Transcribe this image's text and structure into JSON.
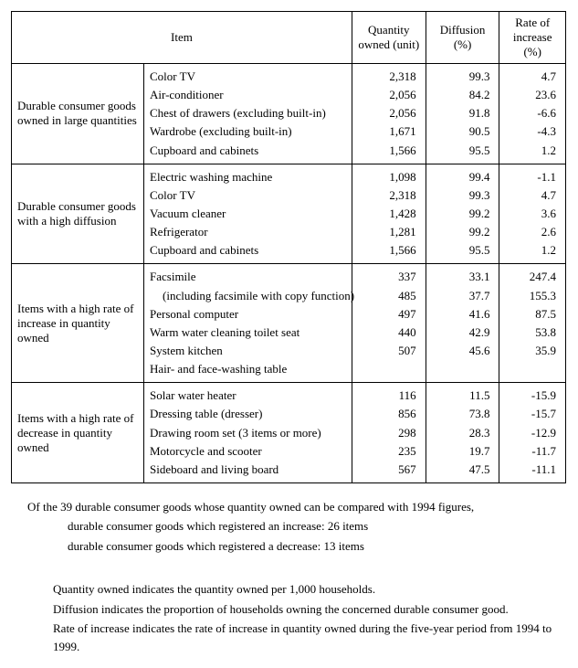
{
  "headers": {
    "item": "Item",
    "qty": "Quantity owned (unit)",
    "diff": "Diffusion (%)",
    "rate": "Rate of increase (%)"
  },
  "groups": [
    {
      "category": "Durable consumer goods owned in large quantities",
      "rows": [
        {
          "item": "Color TV",
          "qty": "2,318",
          "diff": "99.3",
          "rate": "4.7"
        },
        {
          "item": "Air-conditioner",
          "qty": "2,056",
          "diff": "84.2",
          "rate": "23.6"
        },
        {
          "item": "Chest of drawers (excluding built-in)",
          "qty": "2,056",
          "diff": "91.8",
          "rate": "-6.6"
        },
        {
          "item": "Wardrobe (excluding built-in)",
          "qty": "1,671",
          "diff": "90.5",
          "rate": "-4.3"
        },
        {
          "item": "Cupboard and cabinets",
          "qty": "1,566",
          "diff": "95.5",
          "rate": "1.2"
        }
      ]
    },
    {
      "category": "Durable consumer goods with a high diffusion",
      "rows": [
        {
          "item": "Electric washing machine",
          "qty": "1,098",
          "diff": "99.4",
          "rate": "-1.1"
        },
        {
          "item": "Color TV",
          "qty": "2,318",
          "diff": "99.3",
          "rate": "4.7"
        },
        {
          "item": "Vacuum cleaner",
          "qty": "1,428",
          "diff": "99.2",
          "rate": "3.6"
        },
        {
          "item": "Refrigerator",
          "qty": "1,281",
          "diff": "99.2",
          "rate": "2.6"
        },
        {
          "item": "Cupboard and cabinets",
          "qty": "1,566",
          "diff": "95.5",
          "rate": "1.2"
        }
      ]
    },
    {
      "category": "Items with a high rate of increase in quantity owned",
      "rows": [
        {
          "item": "Facsimile",
          "sub": "(including facsimile with copy function)",
          "qty": "337",
          "diff": "33.1",
          "rate": "247.4"
        },
        {
          "item": "Personal computer",
          "qty": "485",
          "diff": "37.7",
          "rate": "155.3"
        },
        {
          "item": "Warm water cleaning toilet seat",
          "qty": "497",
          "diff": "41.6",
          "rate": "87.5"
        },
        {
          "item": "System kitchen",
          "qty": "440",
          "diff": "42.9",
          "rate": "53.8"
        },
        {
          "item": "Hair- and face-washing table",
          "qty": "507",
          "diff": "45.6",
          "rate": "35.9"
        }
      ]
    },
    {
      "category": "Items with a high rate of decrease in quantity owned",
      "rows": [
        {
          "item": "Solar water heater",
          "qty": "116",
          "diff": "11.5",
          "rate": "-15.9"
        },
        {
          "item": "Dressing table (dresser)",
          "qty": "856",
          "diff": "73.8",
          "rate": "-15.7"
        },
        {
          "item": "Drawing room set (3 items or more)",
          "qty": "298",
          "diff": "28.3",
          "rate": "-12.9"
        },
        {
          "item": "Motorcycle and scooter",
          "qty": "235",
          "diff": "19.7",
          "rate": "-11.7"
        },
        {
          "item": "Sideboard and living board",
          "qty": "567",
          "diff": "47.5",
          "rate": "-11.1"
        }
      ]
    }
  ],
  "notes": {
    "n1": "Of the 39 durable consumer goods whose quantity owned can be compared with 1994 figures,",
    "n2": "durable consumer goods which registered an increase: 26 items",
    "n3": "durable consumer goods which registered a decrease: 13 items",
    "f1": "Quantity owned indicates the quantity owned per 1,000 households.",
    "f2": "Diffusion indicates the proportion of households owning the concerned durable consumer good.",
    "f3": "Rate of increase indicates the rate of increase in quantity owned during the five-year period from 1994 to 1999."
  }
}
